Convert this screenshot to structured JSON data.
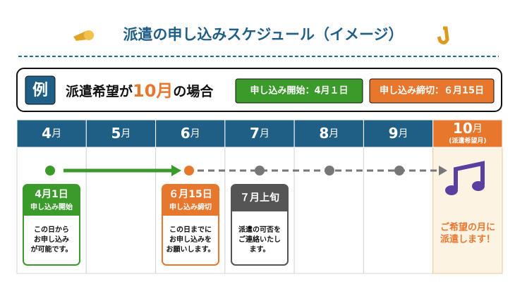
{
  "header": {
    "title": "派遣の申し込みスケジュール（イメージ）"
  },
  "example": {
    "label": "例",
    "text_before": "派遣希望が",
    "month": "10月",
    "text_after": "の場合",
    "badges": [
      {
        "text": "申し込み開始：4月１日"
      },
      {
        "text": "申し込み締切：６月15日"
      }
    ]
  },
  "months": [
    {
      "num": "4",
      "unit": "月"
    },
    {
      "num": "5",
      "unit": "月"
    },
    {
      "num": "6",
      "unit": "月"
    },
    {
      "num": "7",
      "unit": "月"
    },
    {
      "num": "8",
      "unit": "月"
    },
    {
      "num": "9",
      "unit": "月"
    },
    {
      "num": "10",
      "unit": "月",
      "note": "(派遣希望月)"
    }
  ],
  "cards": [
    {
      "date": "4月1日",
      "label": "申し込み開始",
      "lines": [
        "この日から",
        "お申し込み",
        "が可能です。"
      ]
    },
    {
      "date": "６月15日",
      "label": "申し込み締切",
      "lines": [
        "この日までに",
        "お申し込みを",
        "お願いします。"
      ]
    },
    {
      "date": "７月上旬",
      "lines": [
        "派遣の可否を",
        "ご連絡いたし",
        "ます。"
      ]
    }
  ],
  "target": {
    "lines": [
      "ご希望の月に",
      "派遣します！"
    ]
  }
}
